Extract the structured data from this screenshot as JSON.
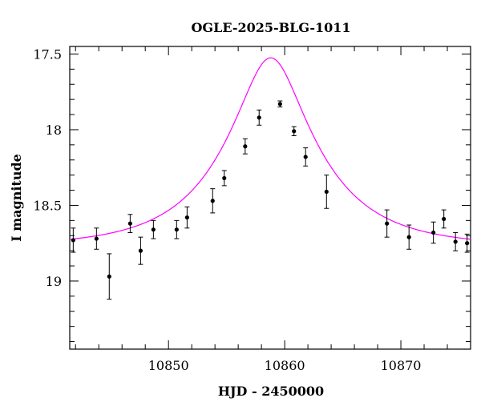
{
  "chart_data": {
    "type": "scatter",
    "title": "OGLE-2025-BLG-1011",
    "xlabel": "HJD - 2450000",
    "ylabel": "I magnitude",
    "xlim": [
      10841.5,
      10876.0
    ],
    "ylim": [
      19.45,
      17.45
    ],
    "y_inverted": true,
    "xticks_major": [
      10850,
      10860,
      10870
    ],
    "xtick_labels": [
      "10850",
      "10860",
      "10870"
    ],
    "yticks_major": [
      17.5,
      18,
      18.5,
      19
    ],
    "ytick_labels": [
      "17.5",
      "18",
      "18.5",
      "19"
    ],
    "grid": false,
    "series": [
      {
        "kind": "points_with_errors",
        "color": "#000000",
        "points": [
          {
            "x": 10841.8,
            "y": 18.73,
            "err": 0.08
          },
          {
            "x": 10843.8,
            "y": 18.72,
            "err": 0.07
          },
          {
            "x": 10844.9,
            "y": 18.97,
            "err": 0.15
          },
          {
            "x": 10846.7,
            "y": 18.62,
            "err": 0.06
          },
          {
            "x": 10847.6,
            "y": 18.8,
            "err": 0.09
          },
          {
            "x": 10848.7,
            "y": 18.66,
            "err": 0.06
          },
          {
            "x": 10850.7,
            "y": 18.66,
            "err": 0.06
          },
          {
            "x": 10851.6,
            "y": 18.58,
            "err": 0.07
          },
          {
            "x": 10853.8,
            "y": 18.47,
            "err": 0.08
          },
          {
            "x": 10854.8,
            "y": 18.32,
            "err": 0.05
          },
          {
            "x": 10856.6,
            "y": 18.11,
            "err": 0.05
          },
          {
            "x": 10857.8,
            "y": 17.92,
            "err": 0.05
          },
          {
            "x": 10859.6,
            "y": 17.83,
            "err": 0.02
          },
          {
            "x": 10860.8,
            "y": 18.01,
            "err": 0.03
          },
          {
            "x": 10861.8,
            "y": 18.18,
            "err": 0.06
          },
          {
            "x": 10863.6,
            "y": 18.41,
            "err": 0.11
          },
          {
            "x": 10868.8,
            "y": 18.62,
            "err": 0.09
          },
          {
            "x": 10870.7,
            "y": 18.71,
            "err": 0.08
          },
          {
            "x": 10872.8,
            "y": 18.68,
            "err": 0.07
          },
          {
            "x": 10873.7,
            "y": 18.59,
            "err": 0.06
          },
          {
            "x": 10874.7,
            "y": 18.74,
            "err": 0.06
          },
          {
            "x": 10875.7,
            "y": 18.75,
            "err": 0.06
          }
        ]
      },
      {
        "kind": "model_curve",
        "color": "#ff00ff",
        "model": {
          "type": "pspl",
          "t0": 10858.8,
          "u0": 0.33,
          "tE": 7.9,
          "baseline_mag": 18.772
        }
      }
    ]
  }
}
